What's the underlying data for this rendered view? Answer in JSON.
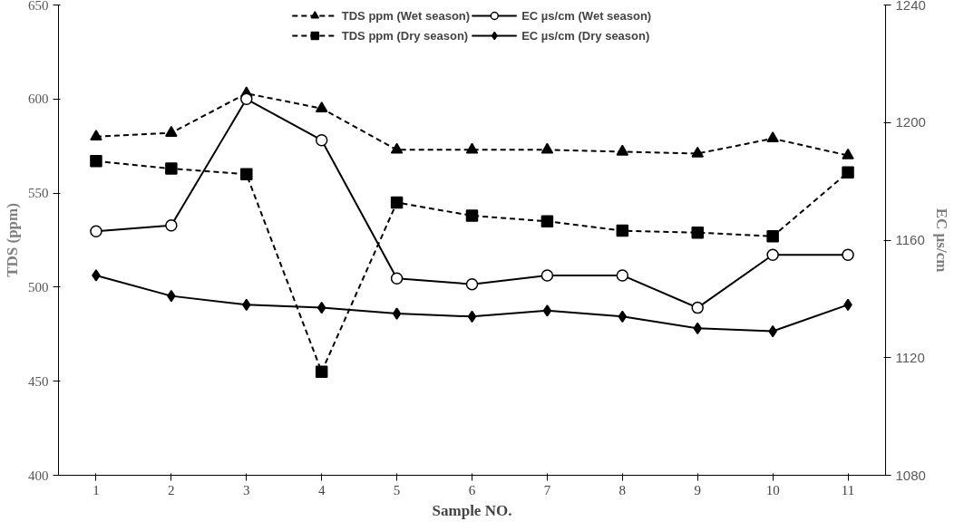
{
  "chart_data": {
    "type": "line",
    "xlabel": "Sample NO.",
    "ylabel": "TDS (ppm)",
    "y2label": "EC µs/cm",
    "categories": [
      "1",
      "2",
      "3",
      "4",
      "5",
      "6",
      "7",
      "8",
      "9",
      "10",
      "11"
    ],
    "ylim": [
      400,
      650
    ],
    "yticks": [
      400,
      450,
      500,
      550,
      600,
      650
    ],
    "y2lim": [
      1080,
      1240
    ],
    "y2ticks": [
      1080,
      1120,
      1160,
      1200,
      1240
    ],
    "legend": "top",
    "grid": false,
    "series": [
      {
        "name": "TDS ppm (Wet season)",
        "color": "#000000",
        "marker": "triangle",
        "line_style": "dashed",
        "values": [
          580,
          582,
          603,
          595,
          573,
          573,
          573,
          572,
          571,
          579,
          570
        ]
      },
      {
        "name": "TDS ppm (Dry season)",
        "color": "#000000",
        "marker": "square",
        "line_style": "dashed",
        "values": [
          567,
          563,
          560,
          455,
          545,
          538,
          535,
          530,
          529,
          527,
          561
        ]
      },
      {
        "name": "EC µs/cm (Wet season)",
        "color": "#000000",
        "marker": "circle",
        "line_style": "solid",
        "axis": "y2",
        "values": [
          1163,
          1165,
          1208,
          1194,
          1147,
          1145,
          1148,
          1148,
          1137,
          1155,
          1155
        ]
      },
      {
        "name": "EC µs/cm (Dry season)",
        "color": "#000000",
        "marker": "diamond",
        "line_style": "solid",
        "axis": "y2",
        "values": [
          1148,
          1141,
          1138,
          1137,
          1135,
          1134,
          1136,
          1134,
          1130,
          1129,
          1138
        ]
      }
    ]
  }
}
